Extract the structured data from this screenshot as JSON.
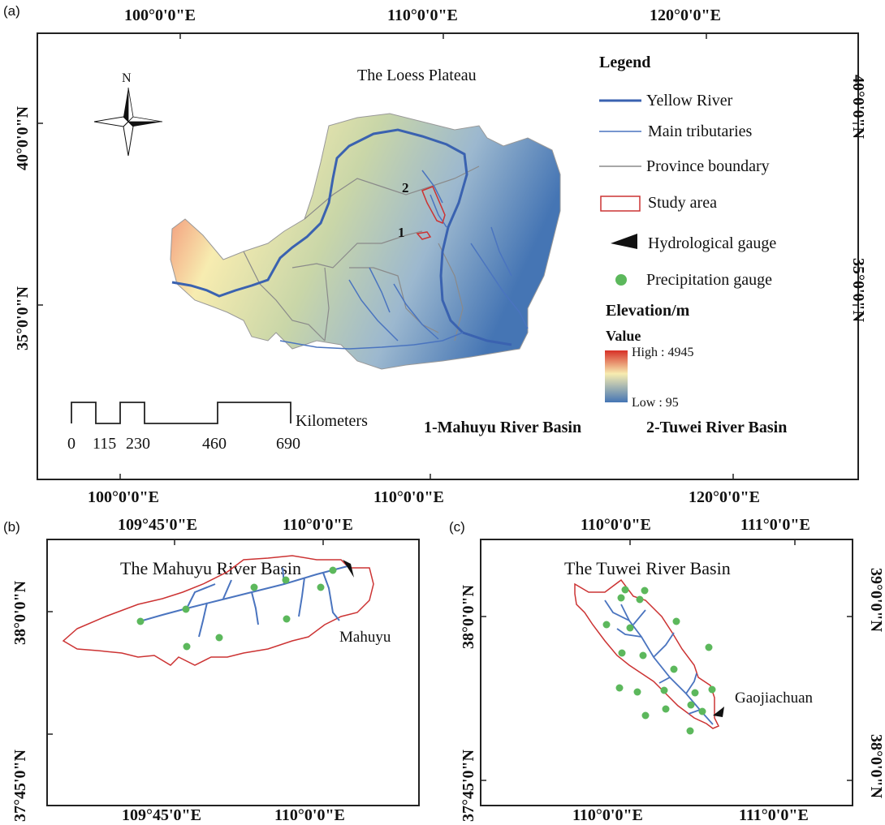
{
  "panel_a": {
    "label": "(a)",
    "top_lon": [
      "100°0'0\"E",
      "110°0'0\"E",
      "120°0'0\"E"
    ],
    "bottom_lon": [
      "100°0'0\"E",
      "110°0'0\"E",
      "120°0'0\"E"
    ],
    "left_lat": [
      "40°0'0\"N",
      "35°0'0\"N"
    ],
    "right_lat": [
      "40°0'0\"N",
      "35°0'0\"N"
    ],
    "map_title": "The Loess Plateau",
    "north": "N",
    "area_labels": [
      "2",
      "1"
    ],
    "scale": {
      "unit": "Kilometers",
      "ticks": [
        "0",
        "115",
        "230",
        "460",
        "690"
      ]
    },
    "basin_names": [
      "1-Mahuyu River Basin",
      "2-Tuwei River Basin"
    ],
    "legend": {
      "title": "Legend",
      "items": [
        "Yellow River",
        "Main tributaries",
        "Province boundary",
        "Study area",
        "Hydrological gauge",
        "Precipitation gauge"
      ],
      "elevation_title": "Elevation/m",
      "value_label": "Value",
      "high": "High : 4945",
      "low": "Low : 95"
    },
    "colors": {
      "yellow_river": "#3a62b0",
      "tributary": "#4a74bf",
      "boundary": "#8a8a8a",
      "study": "#cc3333",
      "precip": "#5cb85c",
      "elev_high": "#d73027",
      "elev_mid": "#f7ecb0",
      "elev_low": "#4575b4"
    }
  },
  "panel_b": {
    "label": "(b)",
    "title": "The Mahuyu River Basin",
    "top_lon": [
      "109°45'0\"E",
      "110°0'0\"E"
    ],
    "bottom_lon": [
      "109°45'0\"E",
      "110°0'0\"E"
    ],
    "left_lat": [
      "38°0'0\"N",
      "37°45'0\"N"
    ],
    "gauge": "Mahuyu"
  },
  "panel_c": {
    "label": "(c)",
    "title": "The Tuwei River Basin",
    "top_lon": [
      "110°0'0\"E",
      "111°0'0\"E"
    ],
    "bottom_lon": [
      "110°0'0\"E",
      "111°0'0\"E"
    ],
    "left_lat": [
      "38°0'0\"N",
      "37°45'0\"N"
    ],
    "right_lat": [
      "39°0'0\"N",
      "38°0'0\"N"
    ],
    "gauge": "Gaojiachuan"
  }
}
